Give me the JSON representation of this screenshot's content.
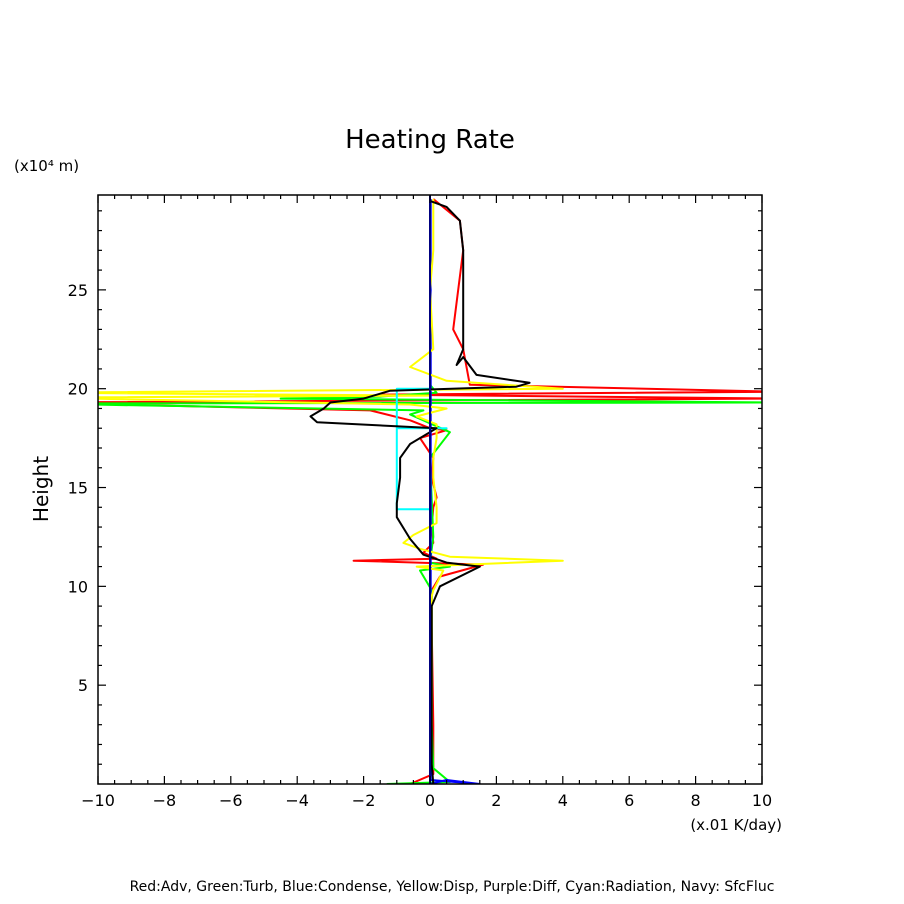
{
  "chart_data": {
    "type": "line",
    "title": "Heating Rate",
    "ylabel": "Height",
    "y_unit_label": "(x10⁴ m)",
    "x_unit_label": "(x.01 K/day)",
    "xlim": [
      -10,
      10
    ],
    "ylim": [
      0,
      29.8
    ],
    "x_ticks": [
      -10,
      -8,
      -6,
      -4,
      -2,
      0,
      2,
      4,
      6,
      8,
      10
    ],
    "x_tick_labels": [
      "−10",
      "−8",
      "−6",
      "−4",
      "−2",
      "0",
      "2",
      "4",
      "6",
      "8",
      "10"
    ],
    "y_ticks": [
      5,
      10,
      15,
      20,
      25
    ],
    "y_tick_labels": [
      "5",
      "10",
      "15",
      "20",
      "25"
    ],
    "legend_text": "Red:Adv, Green:Turb, Blue:Condense, Yellow:Disp, Purple:Diff, Cyan:Radiation, Navy: SfcFluc",
    "grid": false,
    "series": [
      {
        "color": "#ff0000",
        "points": [
          [
            -0.6,
            0
          ],
          [
            0.1,
            0.5
          ],
          [
            0.1,
            3
          ],
          [
            0.05,
            8
          ],
          [
            0.05,
            9.8
          ],
          [
            0.3,
            10.5
          ],
          [
            1.6,
            11.1
          ],
          [
            -2.3,
            11.3
          ],
          [
            0.2,
            11.4
          ],
          [
            -0.2,
            11.7
          ],
          [
            0.1,
            12.2
          ],
          [
            0.05,
            13.0
          ],
          [
            0.1,
            14.0
          ],
          [
            0.2,
            14.5
          ],
          [
            0.05,
            15.5
          ],
          [
            0.1,
            16.5
          ],
          [
            -0.3,
            17.5
          ],
          [
            0.5,
            17.9
          ],
          [
            0.0,
            18.0
          ],
          [
            -0.6,
            18.4
          ],
          [
            -1.8,
            18.9
          ],
          [
            -12,
            19.3
          ],
          [
            10.5,
            19.5
          ],
          [
            -1.5,
            19.7
          ],
          [
            10.5,
            19.85
          ],
          [
            1.2,
            20.2
          ],
          [
            1.0,
            22.0
          ],
          [
            0.7,
            23.0
          ],
          [
            1.0,
            27.0
          ],
          [
            0.9,
            28.5
          ],
          [
            0.1,
            29.6
          ]
        ]
      },
      {
        "color": "#00ff00",
        "points": [
          [
            -1.3,
            0
          ],
          [
            0.6,
            0.1
          ],
          [
            0.1,
            0.8
          ],
          [
            0.05,
            3
          ],
          [
            0.05,
            9.8
          ],
          [
            -0.3,
            10.8
          ],
          [
            0.6,
            11.0
          ],
          [
            0.0,
            11.2
          ],
          [
            0.1,
            12.5
          ],
          [
            0.0,
            16.5
          ],
          [
            0.6,
            17.8
          ],
          [
            -0.6,
            18.7
          ],
          [
            -0.2,
            18.9
          ],
          [
            -12,
            19.25
          ],
          [
            10.5,
            19.3
          ],
          [
            -4.5,
            19.5
          ],
          [
            -1.5,
            19.6
          ],
          [
            0.2,
            19.8
          ],
          [
            0.0,
            20.2
          ],
          [
            0.0,
            29.6
          ]
        ]
      },
      {
        "color": "#0000ff",
        "points": [
          [
            0.0,
            0.0
          ],
          [
            0.5,
            0.2
          ],
          [
            1.5,
            0.0
          ],
          [
            0.02,
            0.2
          ],
          [
            0.02,
            29.6
          ]
        ]
      },
      {
        "color": "#ffff00",
        "points": [
          [
            0.0,
            0.8
          ],
          [
            0.05,
            3
          ],
          [
            0.05,
            9.5
          ],
          [
            0.1,
            9.8
          ],
          [
            0.4,
            10.8
          ],
          [
            -0.4,
            11.0
          ],
          [
            4.0,
            11.3
          ],
          [
            0.6,
            11.5
          ],
          [
            -0.3,
            11.9
          ],
          [
            -0.8,
            12.2
          ],
          [
            -0.5,
            12.6
          ],
          [
            0.2,
            13.2
          ],
          [
            0.2,
            14.0
          ],
          [
            0.1,
            15.5
          ],
          [
            0.1,
            16.5
          ],
          [
            0.2,
            17.5
          ],
          [
            0.2,
            18.2
          ],
          [
            -0.4,
            18.6
          ],
          [
            0.5,
            19.0
          ],
          [
            -0.6,
            19.2
          ],
          [
            -12,
            19.55
          ],
          [
            0.0,
            19.65
          ],
          [
            -12,
            19.8
          ],
          [
            4.0,
            20.0
          ],
          [
            0.5,
            20.4
          ],
          [
            -0.6,
            21.1
          ],
          [
            0.1,
            22.0
          ],
          [
            0.0,
            25.0
          ],
          [
            0.1,
            27.0
          ],
          [
            0.1,
            29.6
          ]
        ]
      },
      {
        "color": "#00ffff",
        "points": [
          [
            0.0,
            13.9
          ],
          [
            -1.0,
            13.9
          ],
          [
            -1.0,
            18.0
          ],
          [
            0.5,
            18.0
          ],
          [
            0.0,
            18.0
          ],
          [
            -1.0,
            18.0
          ],
          [
            -1.0,
            20.0
          ],
          [
            0.0,
            20.0
          ]
        ]
      },
      {
        "color": "#000000",
        "points": [
          [
            0.1,
            0
          ],
          [
            0.05,
            1
          ],
          [
            0.05,
            8
          ],
          [
            0.05,
            9.0
          ],
          [
            0.3,
            10.0
          ],
          [
            1.5,
            11.0
          ],
          [
            0.5,
            11.2
          ],
          [
            -0.2,
            11.6
          ],
          [
            -0.6,
            12.4
          ],
          [
            -1.0,
            13.5
          ],
          [
            -1.0,
            14.2
          ],
          [
            -0.9,
            15.5
          ],
          [
            -0.9,
            16.5
          ],
          [
            -0.6,
            17.2
          ],
          [
            0.2,
            18.0
          ],
          [
            -3.4,
            18.3
          ],
          [
            -3.6,
            18.6
          ],
          [
            -3.2,
            19.0
          ],
          [
            -3.0,
            19.3
          ],
          [
            -2.0,
            19.5
          ],
          [
            -1.2,
            19.9
          ],
          [
            2.6,
            20.1
          ],
          [
            3.0,
            20.3
          ],
          [
            1.4,
            20.7
          ],
          [
            1.0,
            21.6
          ],
          [
            0.8,
            21.2
          ],
          [
            1.0,
            22.0
          ],
          [
            1.0,
            27.0
          ],
          [
            0.9,
            28.5
          ],
          [
            0.5,
            29.2
          ],
          [
            0.0,
            29.5
          ]
        ]
      },
      {
        "color": "#000080",
        "points": [
          [
            0.0,
            0.0
          ],
          [
            0.0,
            29.8
          ]
        ]
      }
    ]
  }
}
